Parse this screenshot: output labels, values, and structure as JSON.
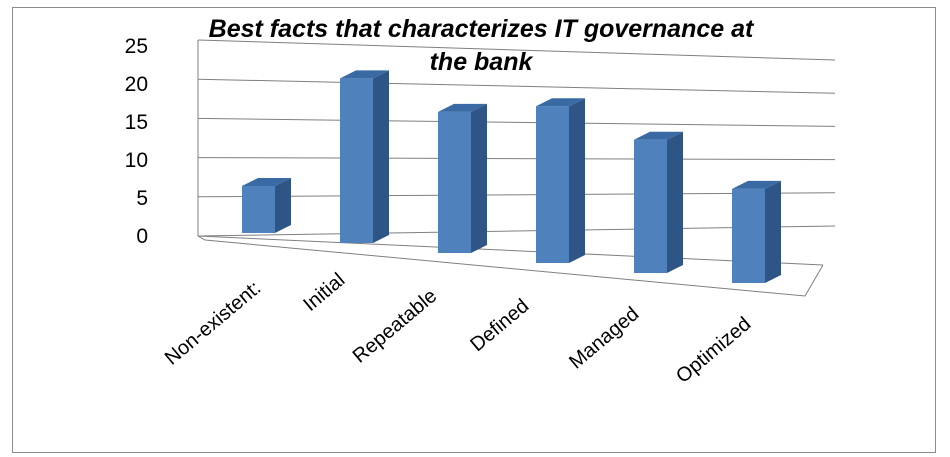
{
  "chart_data": {
    "type": "bar",
    "title_lines": [
      "Best facts that characterizes IT governance at",
      "the bank"
    ],
    "categories": [
      "Non-existent:",
      "Initial",
      "Repeatable",
      "Defined",
      "Managed",
      "Optimized"
    ],
    "values": [
      6,
      21,
      18,
      20,
      17,
      12
    ],
    "ylim": [
      0,
      25
    ],
    "yticks": [
      0,
      5,
      10,
      15,
      20,
      25
    ],
    "grid": true,
    "legend": "none",
    "bar_color": "#4f81bd",
    "bar_side_color": "#2f5486",
    "bar_top_color": "#3a6aa3"
  }
}
